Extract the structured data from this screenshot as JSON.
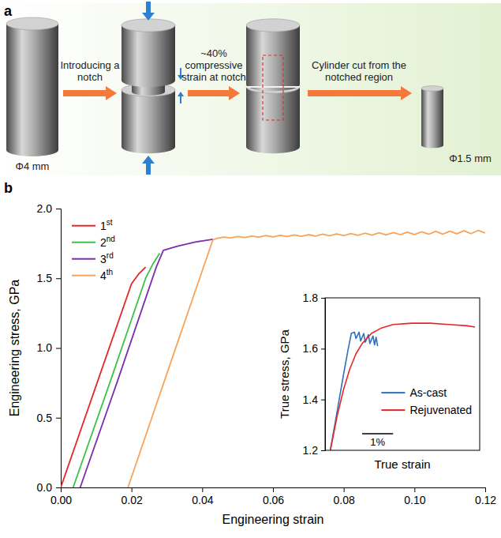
{
  "diagram": {
    "panel": "a",
    "start_diameter": "Φ4 mm",
    "steps": [
      "Introducing a notch",
      "~40% compressive strain at notch",
      "Cylinder cut from the notched region"
    ],
    "end_diameter": "Φ1.5 mm"
  },
  "chart_data": [
    {
      "panel": "b",
      "type": "line",
      "xlabel": "Engineering strain",
      "ylabel": "Engineering stress, GPa",
      "xlim": [
        0,
        0.12
      ],
      "ylim": [
        0,
        2.0
      ],
      "xticks": [
        {
          "value": 0,
          "label": "0.00"
        },
        {
          "value": 0.02,
          "label": "0.02"
        },
        {
          "value": 0.04,
          "label": "0.04"
        },
        {
          "value": 0.06,
          "label": "0.06"
        },
        {
          "value": 0.08,
          "label": "0.08"
        },
        {
          "value": 0.1,
          "label": "0.10"
        },
        {
          "value": 0.12,
          "label": "0.12"
        }
      ],
      "yticks": [
        {
          "value": 0,
          "label": "0.0"
        },
        {
          "value": 0.5,
          "label": "0.5"
        },
        {
          "value": 1.0,
          "label": "1.0"
        },
        {
          "value": 1.5,
          "label": "1.5"
        },
        {
          "value": 2.0,
          "label": "2.0"
        }
      ],
      "legend": "upper left",
      "series": [
        {
          "name": "1st",
          "color": "#e8262a",
          "x": [
            0,
            0.01,
            0.02,
            0.022,
            0.024
          ],
          "values": [
            0,
            0.73,
            1.46,
            1.53,
            1.58
          ]
        },
        {
          "name": "2nd",
          "color": "#3cc24a",
          "x": [
            0.0035,
            0.014,
            0.024,
            0.026,
            0.028
          ],
          "values": [
            0,
            0.76,
            1.5,
            1.6,
            1.68
          ]
        },
        {
          "name": "3rd",
          "color": "#7a2fae",
          "x": [
            0.0055,
            0.016,
            0.027,
            0.029,
            0.033,
            0.038,
            0.043
          ],
          "values": [
            0,
            0.76,
            1.58,
            1.7,
            1.73,
            1.76,
            1.78
          ]
        },
        {
          "name": "4th",
          "color": "#f7a35c",
          "x": [
            0.019,
            0.031,
            0.043,
            0.044,
            0.046,
            0.048,
            0.05,
            0.052,
            0.054,
            0.056,
            0.058,
            0.06,
            0.062,
            0.064,
            0.066,
            0.068,
            0.07,
            0.072,
            0.074,
            0.076,
            0.078,
            0.08,
            0.082,
            0.084,
            0.086,
            0.088,
            0.09,
            0.092,
            0.094,
            0.096,
            0.098,
            0.1,
            0.102,
            0.104,
            0.106,
            0.108,
            0.11,
            0.112,
            0.114,
            0.116,
            0.118,
            0.12
          ],
          "values": [
            0,
            0.89,
            1.775,
            1.785,
            1.795,
            1.79,
            1.8,
            1.793,
            1.803,
            1.795,
            1.806,
            1.797,
            1.808,
            1.799,
            1.811,
            1.801,
            1.813,
            1.803,
            1.816,
            1.805,
            1.818,
            1.806,
            1.821,
            1.808,
            1.823,
            1.81,
            1.826,
            1.811,
            1.828,
            1.813,
            1.831,
            1.814,
            1.833,
            1.816,
            1.836,
            1.817,
            1.838,
            1.819,
            1.841,
            1.82,
            1.843,
            1.825
          ]
        }
      ]
    },
    {
      "type": "line",
      "xlabel": "True strain",
      "ylabel": "True stress, GPa",
      "xlim": [
        0,
        0.05
      ],
      "ylim": [
        1.2,
        1.8
      ],
      "yticks": [
        1.2,
        1.4,
        1.6,
        1.8
      ],
      "tick_labels": "y",
      "legend": "lower right",
      "scale_bar": {
        "value": 0.01,
        "label": "1%"
      },
      "series": [
        {
          "name": "As-cast",
          "color": "#2e6fc0",
          "x": [
            0.0017,
            0.004,
            0.006,
            0.0075,
            0.0085,
            0.0095,
            0.01,
            0.011,
            0.0115,
            0.0125,
            0.013,
            0.014,
            0.0145,
            0.0155,
            0.016,
            0.0165,
            0.017
          ],
          "values": [
            1.2,
            1.36,
            1.5,
            1.6,
            1.66,
            1.665,
            1.64,
            1.665,
            1.63,
            1.66,
            1.625,
            1.655,
            1.62,
            1.65,
            1.615,
            1.645,
            1.61
          ]
        },
        {
          "name": "Rejuvenated",
          "color": "#e8262a",
          "x": [
            0.0017,
            0.004,
            0.006,
            0.008,
            0.01,
            0.012,
            0.015,
            0.018,
            0.022,
            0.028,
            0.034,
            0.04,
            0.046,
            0.0485
          ],
          "values": [
            1.2,
            1.34,
            1.44,
            1.52,
            1.58,
            1.62,
            1.66,
            1.68,
            1.695,
            1.7,
            1.7,
            1.695,
            1.69,
            1.685
          ]
        }
      ]
    }
  ]
}
